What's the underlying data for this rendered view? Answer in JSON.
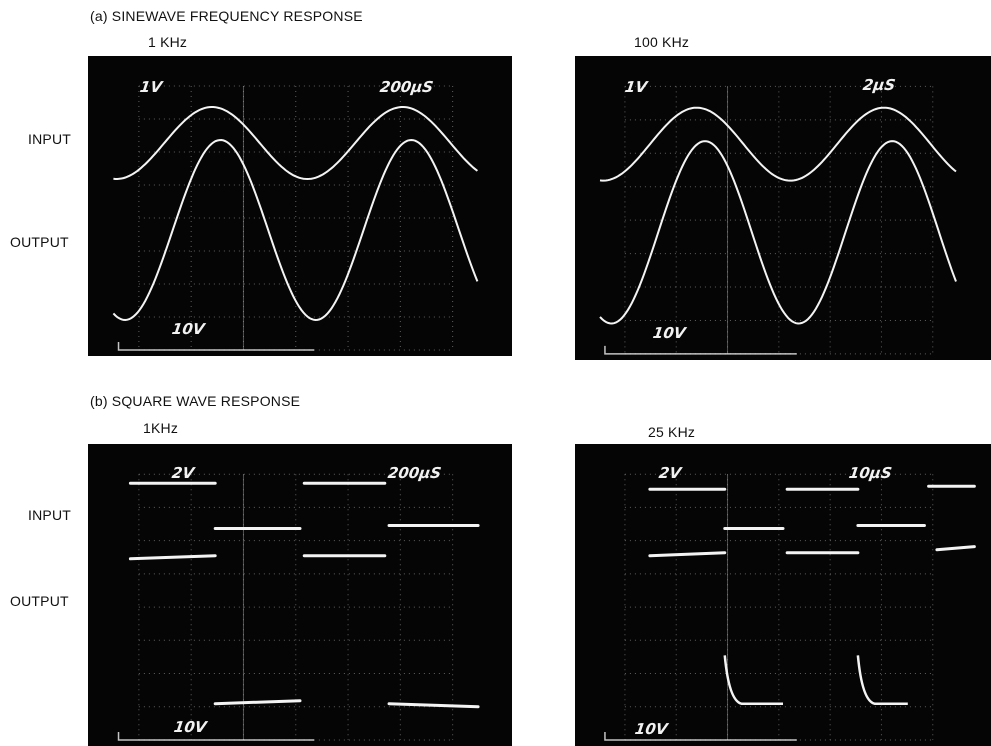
{
  "sections": {
    "sine": {
      "title": "(a) SINEWAVE FREQUENCY RESPONSE",
      "row_labels": {
        "input": "INPUT",
        "output": "OUTPUT"
      },
      "panels": [
        {
          "freq": "1 KHz",
          "volts_top": "1V",
          "time": "200μS",
          "volts_bottom": "10V"
        },
        {
          "freq": "100 KHz",
          "volts_top": "1V",
          "time": "2μS",
          "volts_bottom": "10V"
        }
      ]
    },
    "square": {
      "title": "(b) SQUARE WAVE RESPONSE",
      "row_labels": {
        "input": "INPUT",
        "output": "OUTPUT"
      },
      "panels": [
        {
          "freq": "1KHz",
          "volts_top": "2V",
          "time": "200μS",
          "volts_bottom": "10V"
        },
        {
          "freq": "25 KHz",
          "volts_top": "2V",
          "time": "10μS",
          "volts_bottom": "10V"
        }
      ]
    }
  },
  "colors": {
    "screen": "#050505",
    "trace": "#f4f4f4",
    "grid": "#9a9a9a"
  }
}
